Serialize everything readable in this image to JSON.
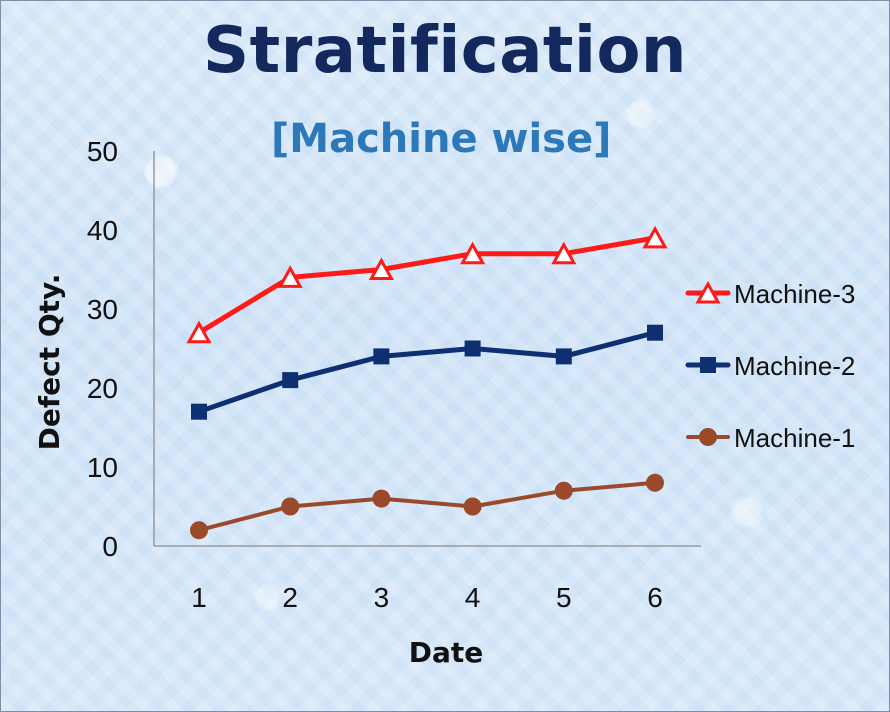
{
  "chart_data": {
    "type": "line",
    "title": "Stratification",
    "subtitle": "[Machine wise]",
    "xlabel": "Date",
    "ylabel": "Defect Qty.",
    "categories": [
      "1",
      "2",
      "3",
      "4",
      "5",
      "6"
    ],
    "ylim": [
      0,
      50
    ],
    "yticks": [
      0,
      10,
      20,
      30,
      40,
      50
    ],
    "grid": false,
    "legend_position": "right",
    "series": [
      {
        "name": "Machine-3",
        "values": [
          27,
          34,
          35,
          37,
          37,
          39
        ],
        "color": "#ff1a1a",
        "marker": "triangle"
      },
      {
        "name": "Machine-2",
        "values": [
          17,
          21,
          24,
          25,
          24,
          27
        ],
        "color": "#0f2f73",
        "marker": "square"
      },
      {
        "name": "Machine-1",
        "values": [
          2,
          5,
          6,
          5,
          7,
          8
        ],
        "color": "#9a4a2a",
        "marker": "circle"
      }
    ]
  }
}
